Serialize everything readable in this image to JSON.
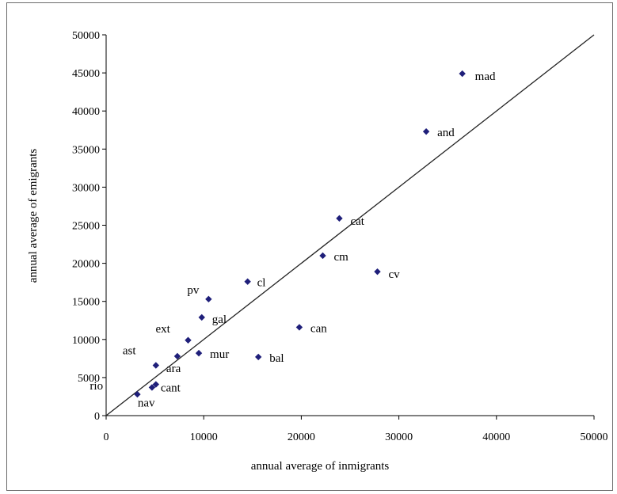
{
  "chart_data": {
    "type": "scatter",
    "xlabel": "annual average of inmigrants",
    "ylabel": "annual average of emigrants",
    "xlim": [
      0,
      50000
    ],
    "ylim": [
      0,
      50000
    ],
    "x_ticks": [
      "0",
      "10000",
      "20000",
      "30000",
      "40000",
      "50000"
    ],
    "y_ticks": [
      "0",
      "5000",
      "10000",
      "15000",
      "20000",
      "25000",
      "30000",
      "35000",
      "40000",
      "45000",
      "50000"
    ],
    "grid": false,
    "legend": "none",
    "reference_line": "y = x",
    "marker_color": "#1f1f7a",
    "points": [
      {
        "label": "mad",
        "x": 36500,
        "y": 44900
      },
      {
        "label": "and",
        "x": 32800,
        "y": 37300
      },
      {
        "label": "cat",
        "x": 23900,
        "y": 25900
      },
      {
        "label": "cm",
        "x": 22200,
        "y": 21000
      },
      {
        "label": "cv",
        "x": 27800,
        "y": 18900
      },
      {
        "label": "cl",
        "x": 14500,
        "y": 17600
      },
      {
        "label": "pv",
        "x": 10500,
        "y": 15300
      },
      {
        "label": "gal",
        "x": 9800,
        "y": 12900
      },
      {
        "label": "can",
        "x": 19800,
        "y": 11600
      },
      {
        "label": "ext",
        "x": 8400,
        "y": 9900
      },
      {
        "label": "mur",
        "x": 9500,
        "y": 8200
      },
      {
        "label": "bal",
        "x": 15600,
        "y": 7700
      },
      {
        "label": "ast",
        "x": 5100,
        "y": 6600
      },
      {
        "label": "ara",
        "x": 7300,
        "y": 7800
      },
      {
        "label": "cant",
        "x": 5100,
        "y": 4100
      },
      {
        "label": "rio",
        "x": 3200,
        "y": 2800
      },
      {
        "label": "nav",
        "x": 4700,
        "y": 3700
      }
    ]
  }
}
